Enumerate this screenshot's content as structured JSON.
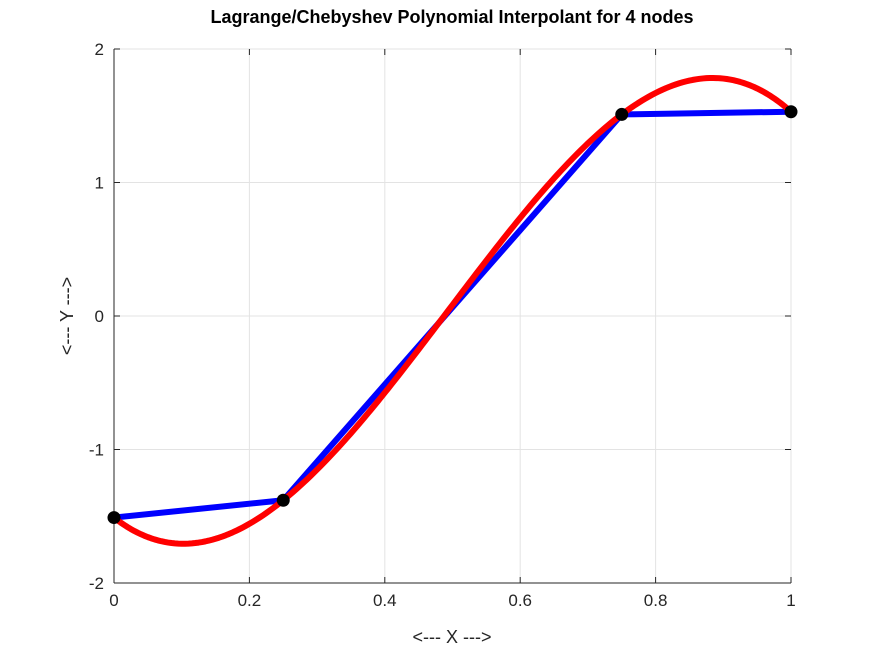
{
  "chart_data": {
    "type": "line",
    "title": "Lagrange/Chebyshev Polynomial Interpolant for 4 nodes",
    "xlabel": "<--- X --->",
    "ylabel": "<--- Y --->",
    "xlim": [
      0,
      1
    ],
    "ylim": [
      -2,
      2
    ],
    "xticks": [
      "0",
      "0.2",
      "0.4",
      "0.6",
      "0.8",
      "1"
    ],
    "yticks": [
      "-2",
      "-1",
      "0",
      "1",
      "2"
    ],
    "grid": true,
    "nodes": {
      "x": [
        0,
        0.25,
        0.75,
        1
      ],
      "y": [
        -1.51,
        -1.38,
        1.51,
        1.53
      ],
      "color": "#000000"
    },
    "series": [
      {
        "style": "piecewise-linear",
        "color": "#0000ff",
        "x": [
          0,
          0.25,
          0.75,
          1
        ],
        "y": [
          -1.51,
          -1.38,
          1.51,
          1.53
        ]
      },
      {
        "style": "cubic interpolant",
        "color": "#ff0000",
        "x": [
          0,
          0.25,
          0.75,
          1
        ],
        "y": [
          -1.51,
          -1.38,
          1.51,
          1.53
        ]
      }
    ]
  }
}
